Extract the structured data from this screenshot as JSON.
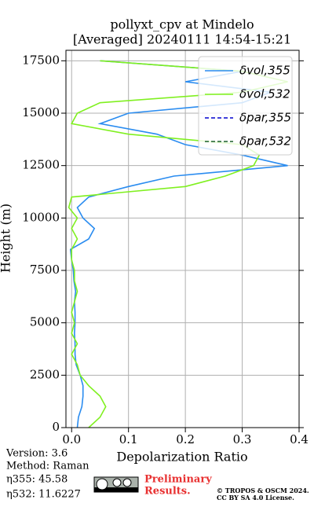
{
  "chart_data": {
    "type": "line",
    "title": "pollyxt_cpv at Mindelo",
    "subtitle": "[Averaged] 20240111 14:54-15:21",
    "x_label": "Depolarization Ratio",
    "y_label": "Height (m)",
    "y": [
      0,
      500,
      1000,
      1500,
      2000,
      2500,
      3000,
      3500,
      4000,
      4500,
      5000,
      5500,
      6000,
      6500,
      7000,
      7500,
      8000,
      8500,
      9000,
      9500,
      10000,
      10500,
      11000,
      11500,
      12000,
      12500,
      13000,
      13500,
      14000,
      14500,
      15000,
      15500,
      16000,
      16500,
      17000,
      17500
    ],
    "series": [
      {
        "name": "δvol,355",
        "color": "#2a8cf0",
        "dash": false,
        "values": [
          0.01,
          0.012,
          0.018,
          0.02,
          0.02,
          0.015,
          0.008,
          0.006,
          0.006,
          0.005,
          0.006,
          0.006,
          0.005,
          0.007,
          0.004,
          0.003,
          0.0,
          -0.002,
          0.03,
          0.04,
          0.02,
          0.01,
          0.03,
          0.1,
          0.18,
          0.38,
          0.3,
          0.2,
          0.15,
          0.05,
          0.1,
          0.3,
          0.35,
          0.2,
          0.3,
          0.05
        ]
      },
      {
        "name": "δvol,532",
        "color": "#80f020",
        "dash": false,
        "values": [
          0.03,
          0.05,
          0.06,
          0.05,
          0.03,
          0.015,
          0.01,
          0.0,
          0.01,
          0.0,
          0.005,
          0.0,
          0.005,
          0.01,
          0.005,
          0.005,
          0.0,
          0.0,
          0.01,
          0.0,
          0.01,
          -0.005,
          0.0,
          0.2,
          0.27,
          0.32,
          0.33,
          0.3,
          0.1,
          0.0,
          0.01,
          0.05,
          0.3,
          0.38,
          0.3,
          0.05
        ]
      },
      {
        "name": "δpar,355",
        "color": "#0000cd",
        "dash": true,
        "values": [
          null,
          null,
          null,
          null,
          null,
          null,
          null,
          null,
          null,
          null,
          null,
          null,
          null,
          null,
          null,
          null,
          null,
          null,
          null,
          null,
          null,
          null,
          null,
          null,
          null,
          null,
          null,
          null,
          null,
          null,
          null,
          null,
          null,
          null,
          null,
          null
        ]
      },
      {
        "name": "δpar,532",
        "color": "#1a5e2a",
        "dash": true,
        "values": [
          null,
          null,
          null,
          null,
          null,
          null,
          null,
          null,
          null,
          null,
          null,
          null,
          null,
          null,
          null,
          null,
          null,
          null,
          null,
          null,
          null,
          null,
          null,
          null,
          null,
          null,
          null,
          null,
          null,
          null,
          null,
          null,
          null,
          null,
          null,
          null
        ]
      }
    ],
    "xlim": [
      -0.01,
      0.4
    ],
    "xticks": [
      {
        "value": 0,
        "label": "0.0"
      },
      0.1,
      0.2,
      0.3,
      0.4
    ],
    "ylim": [
      0,
      18000
    ],
    "yticks": [
      0,
      2500,
      5000,
      7500,
      10000,
      12500,
      15000,
      17500
    ],
    "grid": true,
    "legend": "upper right"
  },
  "footer": {
    "version": "Version: 3.6",
    "method": "Method: Raman",
    "eta355": "η355:  45.58",
    "eta532": "η532: 11.6227",
    "preliminary": "Preliminary",
    "results": "Results.",
    "copyright": "© TROPOS & OSCM 2024.",
    "license": "CC BY SA 4.0 License."
  }
}
